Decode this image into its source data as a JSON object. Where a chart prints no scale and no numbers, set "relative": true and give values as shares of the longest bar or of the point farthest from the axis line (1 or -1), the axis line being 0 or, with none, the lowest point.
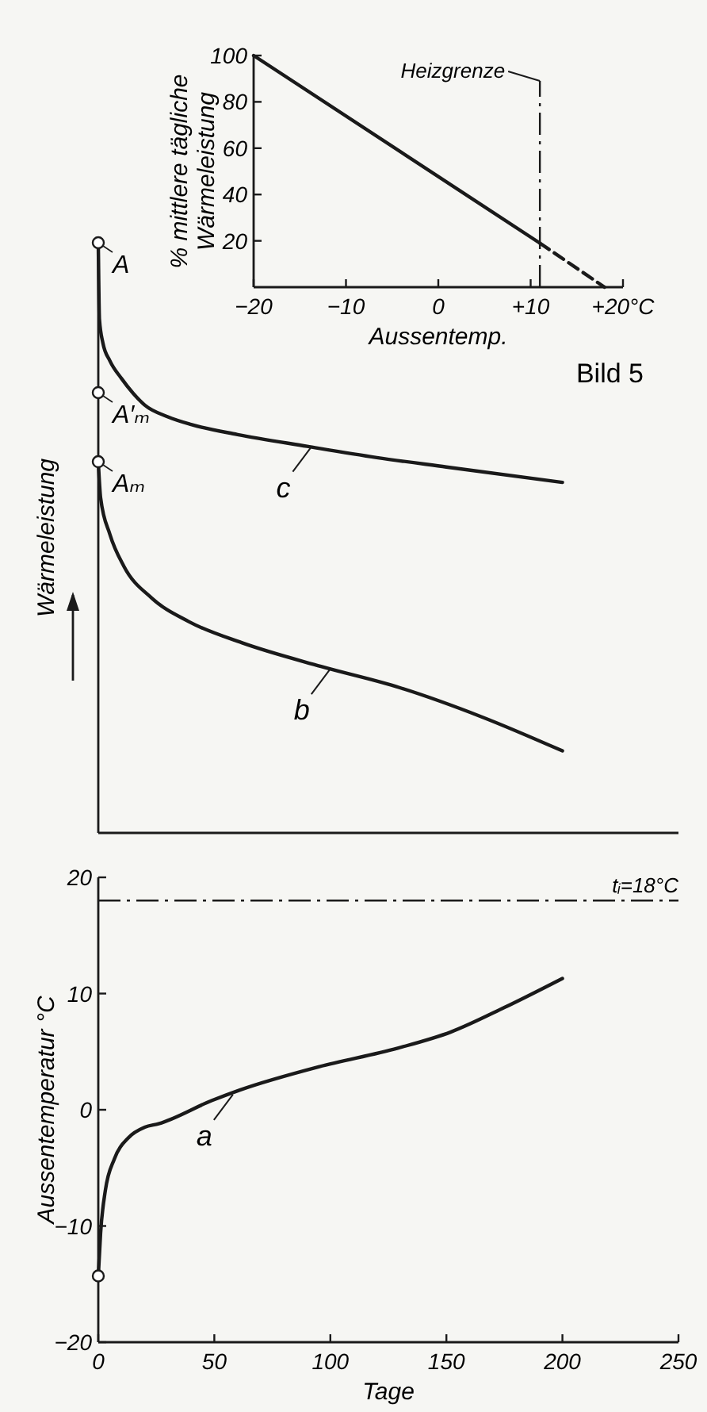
{
  "chart_data": [
    {
      "type": "line",
      "xlabel": "Aussentemp.",
      "ylabel": "% mittlere tägliche Wärmeleistung",
      "xlim": [
        -20,
        20
      ],
      "ylim": [
        0,
        100
      ],
      "xticks": [
        {
          "value": -20,
          "label": "−20"
        },
        {
          "value": -10,
          "label": "−10"
        },
        0,
        {
          "value": 10,
          "label": "+10"
        },
        {
          "value": 20,
          "label": "+20°C"
        }
      ],
      "yticks": [
        20,
        40,
        60,
        80,
        100
      ],
      "series": [
        {
          "color": "#1a1a1a",
          "x": [
            -20,
            11
          ],
          "values": [
            100,
            19
          ],
          "line_style": "solid",
          "marker": "none"
        },
        {
          "color": "#1a1a1a",
          "x": [
            11,
            18
          ],
          "values": [
            19,
            0
          ],
          "line_style": "dashed",
          "marker": "none"
        }
      ],
      "ref_lines": [
        {
          "axis": "x",
          "value": 11,
          "label": "Heizgrenze",
          "line_style": "dashdot"
        }
      ]
    },
    {
      "type": "line",
      "ylabel": "Wärmeleistung",
      "relative": true,
      "xlim": [
        0,
        250
      ],
      "series": [
        {
          "color": "#1a1a1a",
          "x": [
            0,
            0.5,
            2,
            5,
            10,
            15,
            20,
            30,
            40,
            60,
            90,
            120,
            150,
            200
          ],
          "values": [
            1.0,
            0.87,
            0.83,
            0.8,
            0.77,
            0.745,
            0.725,
            0.705,
            0.692,
            0.675,
            0.655,
            0.636,
            0.62,
            0.594
          ],
          "marker": "none"
        },
        {
          "color": "#1a1a1a",
          "x": [
            0,
            1,
            5,
            11,
            23,
            39,
            62,
            96,
            130,
            165,
            200
          ],
          "values": [
            0.629,
            0.568,
            0.506,
            0.452,
            0.398,
            0.358,
            0.322,
            0.282,
            0.246,
            0.197,
            0.139
          ],
          "marker": "none"
        },
        {
          "type": "scatter",
          "color": "#1a1a1a",
          "x": [
            0,
            0,
            0
          ],
          "values": [
            1.0,
            0.746,
            0.629
          ],
          "marker": "circle"
        }
      ],
      "annotations": [
        {
          "text": "A",
          "x": 0,
          "y": 1.0
        },
        {
          "text": "A′ₘ",
          "x": 0,
          "y": 0.746
        },
        {
          "text": "Aₘ",
          "x": 0,
          "y": 0.629
        },
        {
          "text": "c",
          "x": 92,
          "y": 0.655
        },
        {
          "text": "b",
          "x": 100,
          "y": 0.278
        },
        "Bild 5"
      ]
    },
    {
      "type": "line",
      "xlabel": "Tage",
      "ylabel": "Aussentemperatur °C",
      "xlim": [
        0,
        250
      ],
      "ylim": [
        -20,
        20
      ],
      "xticks": [
        0,
        50,
        100,
        150,
        200,
        250
      ],
      "yticks": [
        -20,
        -10,
        0,
        10,
        20
      ],
      "series": [
        {
          "color": "#1a1a1a",
          "x": [
            0,
            1,
            3,
            7,
            13,
            20,
            26,
            49,
            61,
            95,
            129,
            152,
            175,
            200
          ],
          "values": [
            -14.3,
            -10.6,
            -7,
            -4.2,
            -2.4,
            -1.5,
            -1.2,
            0.8,
            1.7,
            3.7,
            5.3,
            6.7,
            8.8,
            11.3
          ],
          "marker": "none"
        },
        {
          "type": "scatter",
          "color": "#1a1a1a",
          "x": [
            0
          ],
          "values": [
            -14.3
          ],
          "marker": "circle"
        }
      ],
      "ref_lines": [
        {
          "axis": "y",
          "value": 18,
          "label": "tᵢ=18°C",
          "line_style": "dashdot"
        }
      ],
      "annotations": [
        {
          "text": "a",
          "x": 58,
          "y": 1.3
        }
      ]
    }
  ]
}
